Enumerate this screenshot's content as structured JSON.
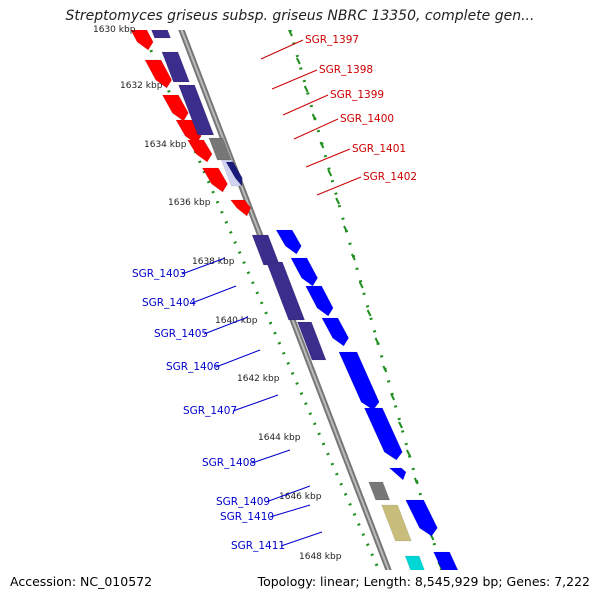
{
  "title": "Streptomyces griseus subsp. griseus NBRC 13350, complete gen...",
  "accession_text": "Accession: NC_010572",
  "summary_text": "Topology: linear; Length: 8,545,929 bp; Genes: 7,222",
  "colors": {
    "forward": "#ff0000",
    "reverse": "#0000ff",
    "homolog": "#3a2d8c",
    "gray": "#777777",
    "khaki": "#c8bd7a",
    "cyan": "#00d6d6",
    "backbone": "#999999",
    "ticks": "#1f8f1f"
  },
  "kbp_labels": [
    "1630 kbp",
    "1632 kbp",
    "1634 kbp",
    "1636 kbp",
    "1638 kbp",
    "1640 kbp",
    "1642 kbp",
    "1644 kbp",
    "1646 kbp",
    "1648 kbp"
  ],
  "genes_top": [
    "SGR_1397",
    "SGR_1398",
    "SGR_1399",
    "SGR_1400",
    "SGR_1401",
    "SGR_1402"
  ],
  "genes_bottom": [
    "SGR_1403",
    "SGR_1404",
    "SGR_1405",
    "SGR_1406",
    "SGR_1407",
    "SGR_1408",
    "SGR_1409",
    "SGR_1410",
    "SGR_1411"
  ]
}
